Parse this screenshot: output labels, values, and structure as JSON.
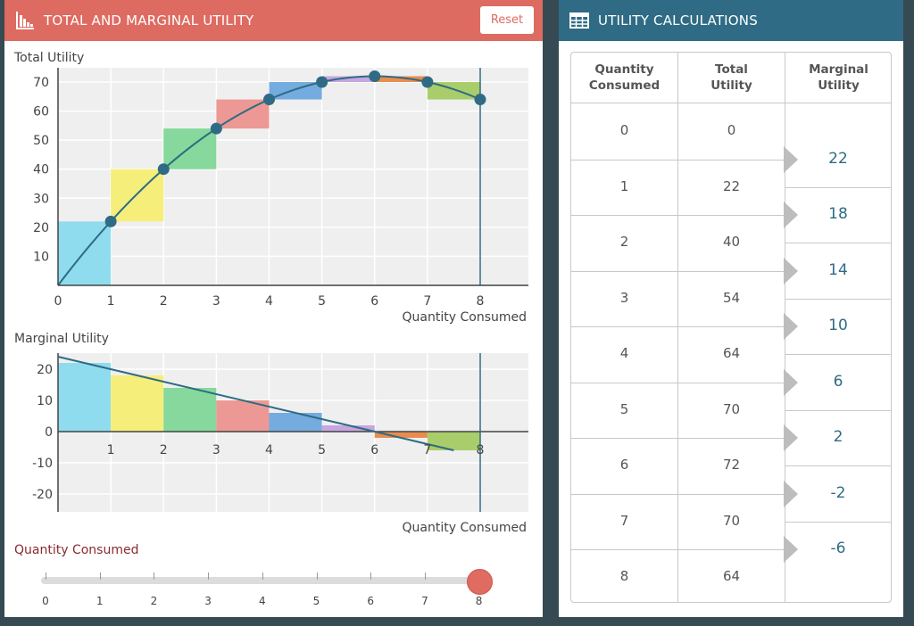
{
  "left_panel": {
    "title": "TOTAL AND MARGINAL UTILITY",
    "reset_label": "Reset"
  },
  "right_panel": {
    "title": "UTILITY CALCULATIONS"
  },
  "colors": {
    "left_header": "#dd6b61",
    "right_header": "#2f6b84",
    "curve": "#2f6b84",
    "bars": [
      "#8fdcef",
      "#f6ee7a",
      "#86d89c",
      "#ec9995",
      "#74acdf",
      "#c6a5e0",
      "#e98d4f",
      "#a9cd6a"
    ],
    "slider_thumb": "#df6b61",
    "slider_label": "#8a2b2e"
  },
  "chart_data": [
    {
      "type": "line",
      "ylabel": "Total Utility",
      "xlabel": "Quantity Consumed",
      "x": [
        0,
        1,
        2,
        3,
        4,
        5,
        6,
        7,
        8
      ],
      "series": [
        {
          "values": [
            0,
            22,
            40,
            54,
            64,
            70,
            72,
            70,
            64
          ]
        }
      ],
      "xlim": [
        0,
        9
      ],
      "ylim": [
        0,
        70
      ],
      "x_ticks": [
        "0",
        "1",
        "2",
        "3",
        "4",
        "5",
        "6",
        "7",
        "8"
      ],
      "y_ticks": [
        "10",
        "20",
        "30",
        "40",
        "50",
        "60",
        "70"
      ],
      "grid": true,
      "step_bars": true,
      "marker_at_x": 8
    },
    {
      "type": "bar",
      "ylabel": "Marginal Utility",
      "xlabel": "Quantity Consumed",
      "categories": [
        "1",
        "2",
        "3",
        "4",
        "5",
        "6",
        "7",
        "8"
      ],
      "values": [
        22,
        18,
        14,
        10,
        6,
        2,
        -2,
        -6
      ],
      "ylim": [
        -25,
        25
      ],
      "y_ticks": [
        "20",
        "10",
        "0",
        "-10",
        "-20"
      ],
      "trend_line": {
        "x": [
          0,
          7.5
        ],
        "y": [
          24,
          -6
        ]
      },
      "grid": true,
      "marker_at_x": 8
    }
  ],
  "slider": {
    "label": "Quantity Consumed",
    "min": 0,
    "max": 8,
    "value": 8,
    "ticks": [
      "0",
      "1",
      "2",
      "3",
      "4",
      "5",
      "6",
      "7",
      "8"
    ]
  },
  "table": {
    "headers": [
      [
        "Quantity",
        "Consumed"
      ],
      [
        "Total",
        "Utility"
      ],
      [
        "Marginal",
        "Utility"
      ]
    ],
    "quantity": [
      "0",
      "1",
      "2",
      "3",
      "4",
      "5",
      "6",
      "7",
      "8"
    ],
    "total_utility": [
      "0",
      "22",
      "40",
      "54",
      "64",
      "70",
      "72",
      "70",
      "64"
    ],
    "marginal_utility": [
      "22",
      "18",
      "14",
      "10",
      "6",
      "2",
      "-2",
      "-6"
    ]
  }
}
